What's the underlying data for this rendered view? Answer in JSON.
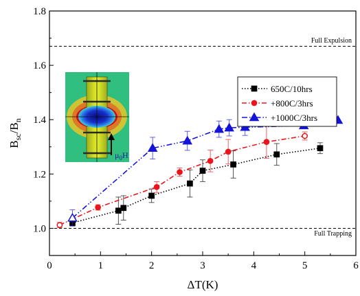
{
  "chart_data": {
    "type": "scatter",
    "xlabel": "ΔT(K)",
    "ylabel_main": "B",
    "ylabel_sub1": "sc",
    "ylabel_mid": "/B",
    "ylabel_sub2": "n",
    "xlim": [
      0,
      6
    ],
    "ylim": [
      0.9,
      1.8
    ],
    "xticks": [
      "0",
      "1",
      "2",
      "3",
      "4",
      "5",
      "6"
    ],
    "yticks": [
      "1.0",
      "1.2",
      "1.4",
      "1.6",
      "1.8"
    ],
    "grid": false,
    "legend_position": "top-right",
    "reference_lines": [
      {
        "label": "Full Expulsion",
        "y": 1.67
      },
      {
        "label": "Full Trapping",
        "y": 1.0
      }
    ],
    "inset": {
      "field_label": "μ",
      "field_sub": "0",
      "field_suffix": "H"
    },
    "series": [
      {
        "name": "650C/10hrs",
        "color": "#000000",
        "marker": "square",
        "line": "dotted",
        "x": [
          0.45,
          1.35,
          1.45,
          2.0,
          2.75,
          3.0,
          3.6,
          4.45,
          5.3
        ],
        "y": [
          1.02,
          1.065,
          1.075,
          1.12,
          1.165,
          1.212,
          1.235,
          1.272,
          1.295
        ],
        "err": [
          0.01,
          0.05,
          0.045,
          0.025,
          0.05,
          0.04,
          0.05,
          0.04,
          0.02
        ]
      },
      {
        "name": "+800C/3hrs",
        "color": "#e8161c",
        "marker": "circle",
        "line": "dashdot",
        "x": [
          0.2,
          0.95,
          2.1,
          2.55,
          3.15,
          3.5,
          4.25,
          5.0
        ],
        "y": [
          1.012,
          1.077,
          1.152,
          1.207,
          1.248,
          1.282,
          1.318,
          1.34
        ],
        "err": [
          0.01,
          0.01,
          0.02,
          0.015,
          0.04,
          0.045,
          0.06,
          0.015
        ]
      },
      {
        "name": "+1000C/3hrs",
        "color": "#1414d8",
        "marker": "triangle",
        "line": "dashdotdot",
        "x": [
          0.45,
          2.02,
          2.7,
          3.32,
          3.52,
          3.83,
          4.98,
          5.65
        ],
        "y": [
          1.038,
          1.295,
          1.322,
          1.365,
          1.37,
          1.372,
          1.378,
          1.398
        ],
        "err": [
          0.03,
          0.04,
          0.035,
          0.03,
          0.03,
          0.03,
          0.01,
          0.0
        ]
      }
    ]
  }
}
